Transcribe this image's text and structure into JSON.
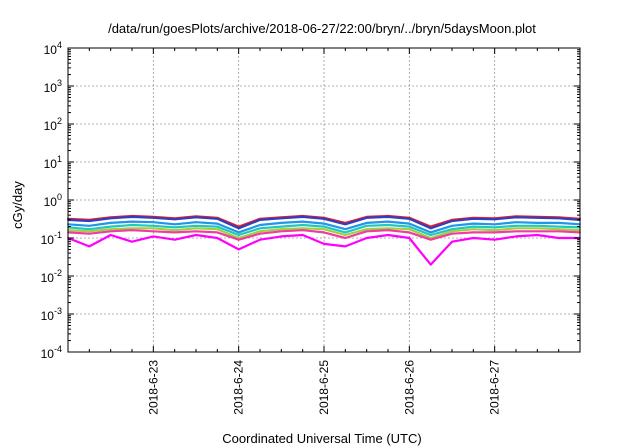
{
  "chart_data": {
    "type": "line",
    "title": "/data/run/goesPlots/archive/2018-06-27/22:00/bryn/../bryn/5daysMoon.plot",
    "xlabel": "Coordinated Universal Time (UTC)",
    "ylabel": "cGy/day",
    "yscale": "log",
    "ylim": [
      0.0001,
      10000
    ],
    "xlim": [
      "2018-06-22 00:00",
      "2018-06-28 00:00"
    ],
    "grid": true,
    "legend": "none",
    "x_ticks": [
      "2018-6-23",
      "2018-6-24",
      "2018-6-25",
      "2018-6-26",
      "2018-6-27"
    ],
    "y_ticks": [
      {
        "base": "10",
        "exp": "-4",
        "value": 0.0001
      },
      {
        "base": "10",
        "exp": "-3",
        "value": 0.001
      },
      {
        "base": "10",
        "exp": "-2",
        "value": 0.01
      },
      {
        "base": "10",
        "exp": "-1",
        "value": 0.1
      },
      {
        "base": "10",
        "exp": "0",
        "value": 1
      },
      {
        "base": "10",
        "exp": "1",
        "value": 10
      },
      {
        "base": "10",
        "exp": "2",
        "value": 100
      },
      {
        "base": "10",
        "exp": "3",
        "value": 1000
      },
      {
        "base": "10",
        "exp": "4",
        "value": 10000
      }
    ],
    "x": [
      "2018-06-22 00:00",
      "2018-06-22 06:00",
      "2018-06-22 12:00",
      "2018-06-22 18:00",
      "2018-06-23 00:00",
      "2018-06-23 06:00",
      "2018-06-23 12:00",
      "2018-06-23 18:00",
      "2018-06-24 00:00",
      "2018-06-24 06:00",
      "2018-06-24 12:00",
      "2018-06-24 18:00",
      "2018-06-25 00:00",
      "2018-06-25 06:00",
      "2018-06-25 12:00",
      "2018-06-25 18:00",
      "2018-06-26 00:00",
      "2018-06-26 06:00",
      "2018-06-26 12:00",
      "2018-06-26 18:00",
      "2018-06-27 00:00",
      "2018-06-27 06:00",
      "2018-06-27 12:00",
      "2018-06-27 18:00",
      "2018-06-28 00:00"
    ],
    "series": [
      {
        "color": "#e8192c",
        "values": [
          0.32,
          0.3,
          0.35,
          0.38,
          0.36,
          0.33,
          0.37,
          0.34,
          0.2,
          0.32,
          0.35,
          0.38,
          0.34,
          0.25,
          0.36,
          0.38,
          0.34,
          0.2,
          0.3,
          0.34,
          0.33,
          0.37,
          0.36,
          0.35,
          0.32
        ]
      },
      {
        "color": "#2c3fbf",
        "values": [
          0.3,
          0.28,
          0.33,
          0.36,
          0.34,
          0.31,
          0.35,
          0.32,
          0.18,
          0.3,
          0.33,
          0.36,
          0.32,
          0.23,
          0.34,
          0.36,
          0.32,
          0.18,
          0.28,
          0.32,
          0.31,
          0.35,
          0.34,
          0.33,
          0.3
        ]
      },
      {
        "color": "#2196e8",
        "values": [
          0.23,
          0.21,
          0.25,
          0.27,
          0.26,
          0.23,
          0.26,
          0.24,
          0.14,
          0.22,
          0.25,
          0.27,
          0.24,
          0.17,
          0.25,
          0.27,
          0.24,
          0.14,
          0.21,
          0.24,
          0.23,
          0.26,
          0.25,
          0.25,
          0.23
        ]
      },
      {
        "color": "#20c8c0",
        "values": [
          0.19,
          0.17,
          0.2,
          0.22,
          0.21,
          0.19,
          0.21,
          0.2,
          0.12,
          0.18,
          0.2,
          0.22,
          0.2,
          0.14,
          0.21,
          0.22,
          0.2,
          0.12,
          0.17,
          0.2,
          0.19,
          0.21,
          0.21,
          0.2,
          0.19
        ]
      },
      {
        "color": "#a0d040",
        "values": [
          0.16,
          0.15,
          0.17,
          0.18,
          0.18,
          0.16,
          0.18,
          0.17,
          0.1,
          0.15,
          0.17,
          0.18,
          0.17,
          0.12,
          0.17,
          0.18,
          0.17,
          0.1,
          0.15,
          0.17,
          0.16,
          0.18,
          0.18,
          0.17,
          0.16
        ]
      },
      {
        "color": "#f03ca0",
        "values": [
          0.14,
          0.13,
          0.15,
          0.16,
          0.15,
          0.14,
          0.15,
          0.14,
          0.09,
          0.13,
          0.15,
          0.16,
          0.14,
          0.1,
          0.15,
          0.16,
          0.14,
          0.09,
          0.13,
          0.14,
          0.14,
          0.15,
          0.15,
          0.15,
          0.14
        ]
      },
      {
        "color": "#ff00ff",
        "values": [
          0.1,
          0.06,
          0.12,
          0.08,
          0.11,
          0.09,
          0.12,
          0.1,
          0.05,
          0.09,
          0.11,
          0.12,
          0.07,
          0.06,
          0.1,
          0.12,
          0.1,
          0.02,
          0.08,
          0.1,
          0.09,
          0.11,
          0.12,
          0.1,
          0.1
        ]
      }
    ]
  }
}
